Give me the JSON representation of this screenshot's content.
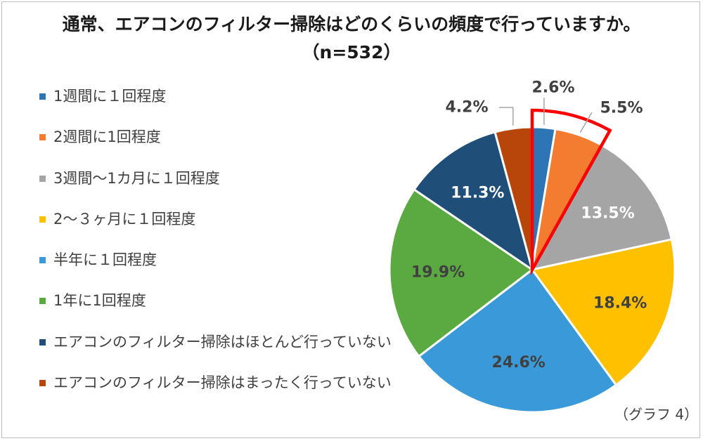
{
  "title": "通常、エアコンのフィルター掃除はどのくらいの頻度で行っていますか。",
  "subtitle": "（n=532）",
  "note": "（グラフ 4）",
  "chart_data": {
    "type": "pie",
    "start_angle_deg": 0,
    "direction": "clockwise",
    "slices": [
      {
        "label": "1週間に１回程度",
        "value": 2.6,
        "display": "2.6%",
        "color": "#2E75B6"
      },
      {
        "label": "2週間に1回程度",
        "value": 5.5,
        "display": "5.5%",
        "color": "#F47C30"
      },
      {
        "label": "3週間〜1カ月に１回程度",
        "value": 13.5,
        "display": "13.5%",
        "color": "#A5A5A5"
      },
      {
        "label": "2〜３ヶ月に１回程度",
        "value": 18.4,
        "display": "18.4%",
        "color": "#FFC000"
      },
      {
        "label": "半年に１回程度",
        "value": 24.6,
        "display": "24.6%",
        "color": "#3A9AD9"
      },
      {
        "label": "1年に1回程度",
        "value": 19.9,
        "display": "19.9%",
        "color": "#5BA941"
      },
      {
        "label": "エアコンのフィルター掃除はほとんど行っていない",
        "value": 11.3,
        "display": "11.3%",
        "color": "#1F4E79"
      },
      {
        "label": "エアコンのフィルター掃除はまったく行っていない",
        "value": 4.2,
        "display": "4.2%",
        "color": "#B8460B"
      }
    ],
    "highlight": {
      "slices": [
        0,
        1
      ],
      "color": "#FF0000"
    },
    "legend_position": "left"
  }
}
